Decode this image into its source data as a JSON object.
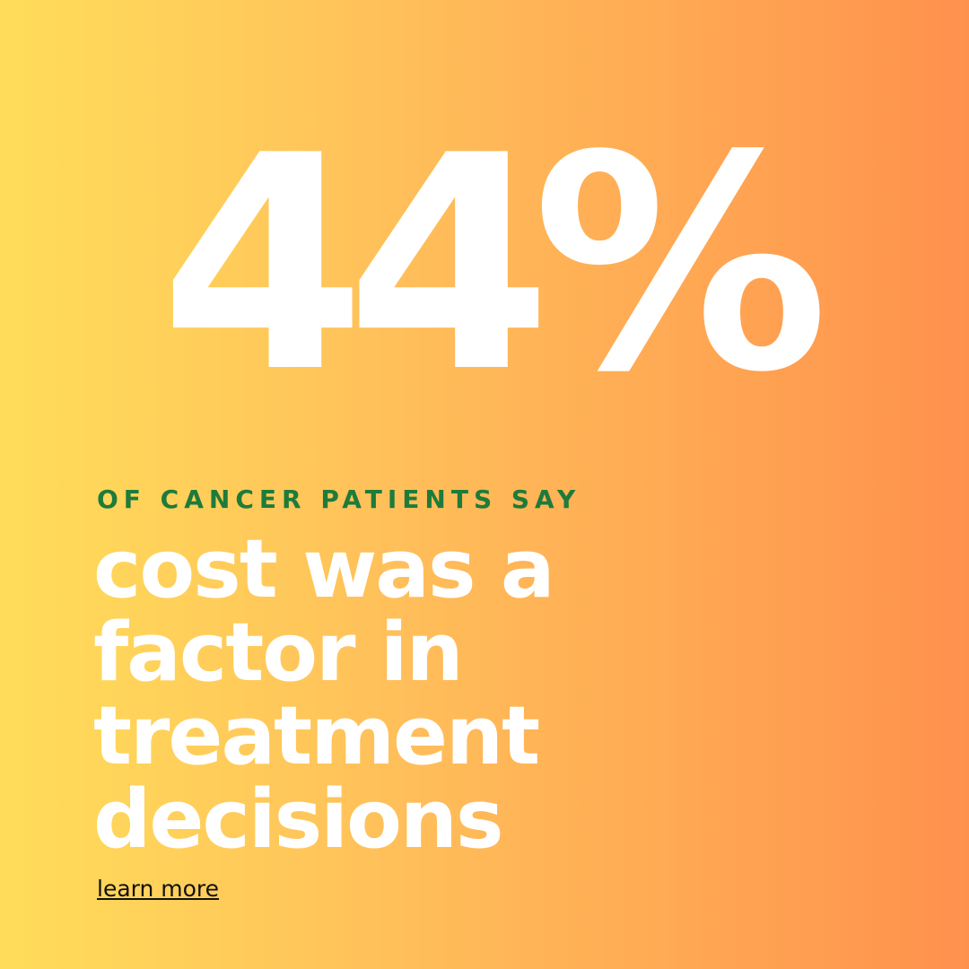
{
  "stat": "44%",
  "subtitle": "OF CANCER PATIENTS SAY",
  "headline": {
    "lines": [
      "cost was a",
      "factor in",
      "treatment",
      "decisions"
    ]
  },
  "link": "learn more"
}
